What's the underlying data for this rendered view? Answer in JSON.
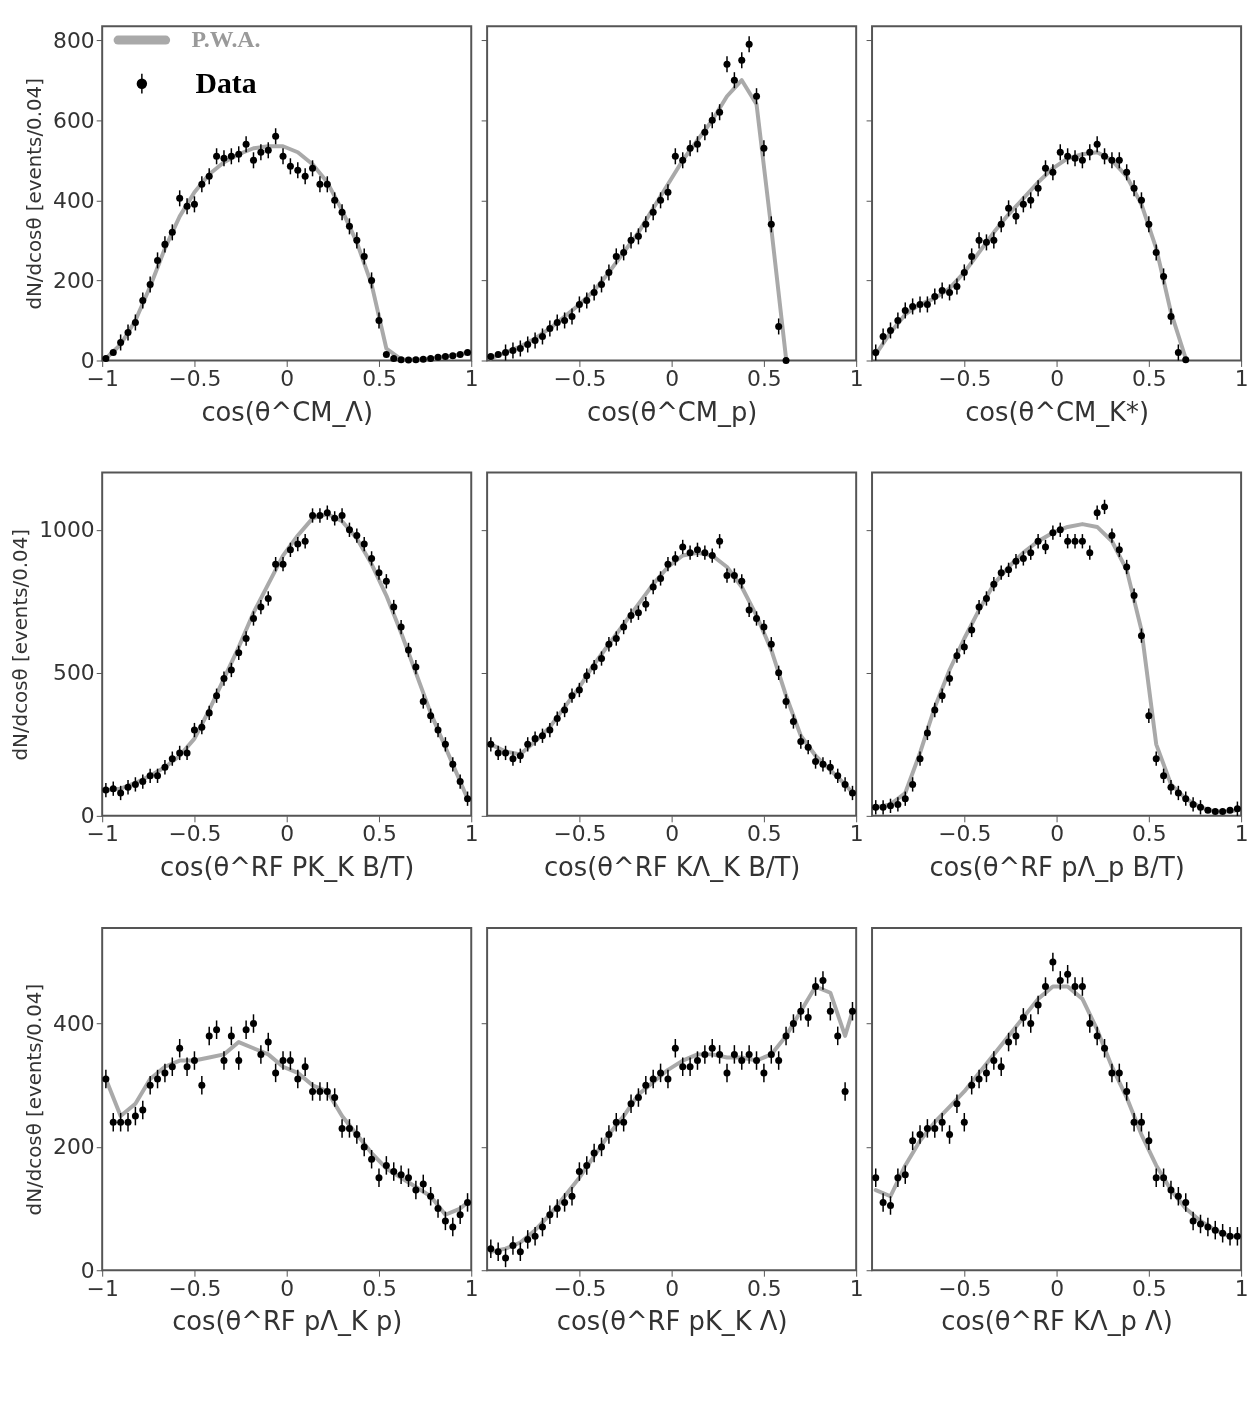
{
  "chart_data": [
    {
      "type": "scatter",
      "xlabel": "cos(θ^CM_Λ)",
      "ylabel": "dN/dcosθ [events/0.04]",
      "xlim": [
        -1,
        1
      ],
      "ylim": [
        0,
        835
      ],
      "xticks": [
        -1,
        -0.5,
        0,
        0.5,
        1
      ],
      "yticks": [
        0,
        200,
        400,
        600,
        800
      ],
      "legend": "top left",
      "x": [
        -0.98,
        -0.94,
        -0.9,
        -0.86,
        -0.82,
        -0.78,
        -0.74,
        -0.7,
        -0.66,
        -0.62,
        -0.58,
        -0.54,
        -0.5,
        -0.46,
        -0.42,
        -0.38,
        -0.34,
        -0.3,
        -0.26,
        -0.22,
        -0.18,
        -0.14,
        -0.1,
        -0.06,
        -0.02,
        0.02,
        0.06,
        0.1,
        0.14,
        0.18,
        0.22,
        0.26,
        0.3,
        0.34,
        0.38,
        0.42,
        0.46,
        0.5,
        0.54,
        0.58,
        0.62,
        0.66,
        0.7,
        0.74,
        0.78,
        0.82,
        0.86,
        0.9,
        0.94,
        0.98
      ],
      "series": [
        {
          "name": "P.W.A.",
          "type": "line",
          "marker": "none",
          "color": "#9a9a9a",
          "x": [
            -0.98,
            -0.9,
            -0.82,
            -0.74,
            -0.66,
            -0.58,
            -0.5,
            -0.42,
            -0.34,
            -0.26,
            -0.18,
            -0.1,
            -0.02,
            0.06,
            0.14,
            0.22,
            0.3,
            0.38,
            0.46,
            0.54,
            0.62,
            0.7,
            0.78,
            0.86,
            0.94,
            0.98
          ],
          "values": [
            5,
            40,
            100,
            185,
            280,
            360,
            420,
            465,
            495,
            515,
            530,
            535,
            535,
            520,
            490,
            445,
            375,
            295,
            190,
            30,
            3,
            2,
            5,
            10,
            15,
            20
          ]
        },
        {
          "name": "Data",
          "type": "scatter",
          "marker": "circle",
          "color": "#000000",
          "values": [
            5,
            20,
            45,
            70,
            95,
            150,
            190,
            250,
            290,
            320,
            405,
            385,
            390,
            440,
            460,
            510,
            505,
            510,
            515,
            540,
            500,
            520,
            525,
            560,
            510,
            485,
            475,
            460,
            480,
            440,
            440,
            400,
            370,
            335,
            300,
            260,
            200,
            100,
            15,
            5,
            2,
            1,
            2,
            3,
            5,
            8,
            10,
            12,
            15,
            20
          ],
          "errors": [
            null,
            null,
            20,
            20,
            20,
            20,
            20,
            20,
            20,
            20,
            20,
            20,
            20,
            20,
            20,
            20,
            20,
            20,
            20,
            20,
            20,
            20,
            20,
            20,
            20,
            20,
            20,
            20,
            20,
            20,
            20,
            20,
            20,
            20,
            20,
            20,
            20,
            20,
            null,
            null,
            null,
            null,
            null,
            null,
            null,
            null,
            null,
            null,
            null,
            null
          ]
        }
      ]
    },
    {
      "type": "scatter",
      "xlabel": "cos(θ^CM_p)",
      "xlim": [
        -1,
        1
      ],
      "ylim": [
        0,
        835
      ],
      "xticks": [
        -0.5,
        0,
        0.5,
        1
      ],
      "yticks": [
        0,
        200,
        400,
        600,
        800
      ],
      "tick_labels": "x",
      "x": [
        -0.98,
        -0.94,
        -0.9,
        -0.86,
        -0.82,
        -0.78,
        -0.74,
        -0.7,
        -0.66,
        -0.62,
        -0.58,
        -0.54,
        -0.5,
        -0.46,
        -0.42,
        -0.38,
        -0.34,
        -0.3,
        -0.26,
        -0.22,
        -0.18,
        -0.14,
        -0.1,
        -0.06,
        -0.02,
        0.02,
        0.06,
        0.1,
        0.14,
        0.18,
        0.22,
        0.26,
        0.3,
        0.34,
        0.38,
        0.42,
        0.46,
        0.5,
        0.54,
        0.58,
        0.62
      ],
      "series": [
        {
          "type": "line",
          "marker": "none",
          "color": "#9a9a9a",
          "x": [
            -0.98,
            -0.9,
            -0.82,
            -0.74,
            -0.66,
            -0.58,
            -0.5,
            -0.42,
            -0.34,
            -0.26,
            -0.18,
            -0.1,
            -0.02,
            0.06,
            0.14,
            0.22,
            0.3,
            0.38,
            0.46,
            0.54,
            0.62
          ],
          "values": [
            5,
            20,
            35,
            55,
            80,
            110,
            140,
            175,
            220,
            270,
            320,
            380,
            440,
            500,
            550,
            600,
            660,
            700,
            640,
            330,
            5
          ]
        },
        {
          "type": "scatter",
          "marker": "circle",
          "color": "#000000",
          "values": [
            10,
            15,
            20,
            25,
            30,
            40,
            50,
            60,
            80,
            95,
            100,
            110,
            140,
            150,
            170,
            190,
            220,
            260,
            270,
            300,
            310,
            340,
            370,
            400,
            420,
            510,
            500,
            530,
            540,
            570,
            600,
            620,
            740,
            700,
            750,
            790,
            660,
            530,
            340,
            85,
            0
          ],
          "errors": [
            null,
            null,
            20,
            20,
            20,
            20,
            20,
            20,
            20,
            20,
            20,
            20,
            20,
            20,
            20,
            20,
            20,
            20,
            20,
            20,
            20,
            20,
            20,
            20,
            20,
            20,
            20,
            20,
            20,
            20,
            20,
            20,
            20,
            20,
            20,
            20,
            20,
            20,
            20,
            20,
            null
          ]
        }
      ]
    },
    {
      "type": "scatter",
      "xlabel": "cos(θ^CM_K*)",
      "xlim": [
        -1,
        1
      ],
      "ylim": [
        0,
        835
      ],
      "xticks": [
        -0.5,
        0,
        0.5,
        1
      ],
      "yticks": [
        0,
        200,
        400,
        600,
        800
      ],
      "tick_labels": "x",
      "x": [
        -0.98,
        -0.94,
        -0.9,
        -0.86,
        -0.82,
        -0.78,
        -0.74,
        -0.7,
        -0.66,
        -0.62,
        -0.58,
        -0.54,
        -0.5,
        -0.46,
        -0.42,
        -0.38,
        -0.34,
        -0.3,
        -0.26,
        -0.22,
        -0.18,
        -0.14,
        -0.1,
        -0.06,
        -0.02,
        0.02,
        0.06,
        0.1,
        0.14,
        0.18,
        0.22,
        0.26,
        0.3,
        0.34,
        0.38,
        0.42,
        0.46,
        0.5,
        0.54,
        0.58,
        0.62,
        0.66,
        0.7
      ],
      "series": [
        {
          "type": "line",
          "marker": "none",
          "color": "#9a9a9a",
          "x": [
            -0.98,
            -0.9,
            -0.82,
            -0.74,
            -0.66,
            -0.58,
            -0.5,
            -0.42,
            -0.34,
            -0.26,
            -0.18,
            -0.1,
            -0.02,
            0.06,
            0.14,
            0.22,
            0.3,
            0.38,
            0.46,
            0.54,
            0.62,
            0.7
          ],
          "values": [
            15,
            70,
            115,
            140,
            155,
            180,
            220,
            270,
            320,
            365,
            405,
            445,
            480,
            505,
            515,
            520,
            500,
            460,
            390,
            280,
            120,
            5
          ]
        },
        {
          "type": "scatter",
          "marker": "circle",
          "color": "#000000",
          "values": [
            20,
            60,
            75,
            100,
            125,
            135,
            140,
            140,
            160,
            175,
            170,
            185,
            220,
            260,
            300,
            295,
            300,
            340,
            380,
            360,
            390,
            400,
            430,
            480,
            470,
            520,
            510,
            505,
            500,
            520,
            540,
            510,
            500,
            500,
            470,
            430,
            400,
            340,
            270,
            210,
            110,
            20,
            2
          ],
          "errors": [
            20,
            20,
            20,
            20,
            20,
            20,
            20,
            20,
            20,
            20,
            20,
            20,
            20,
            20,
            20,
            20,
            20,
            20,
            20,
            20,
            20,
            20,
            20,
            20,
            20,
            20,
            20,
            20,
            20,
            20,
            20,
            20,
            20,
            20,
            20,
            20,
            20,
            20,
            20,
            20,
            20,
            20,
            null
          ]
        }
      ]
    },
    {
      "type": "scatter",
      "xlabel": "cos(θ^RF PK_K B/T)",
      "ylabel": "dN/dcosθ [events/0.04]",
      "xlim": [
        -1,
        1
      ],
      "ylim": [
        0,
        1200
      ],
      "xticks": [
        -1,
        -0.5,
        0,
        0.5,
        1
      ],
      "yticks": [
        0,
        500,
        1000
      ],
      "x": [
        -0.98,
        -0.94,
        -0.9,
        -0.86,
        -0.82,
        -0.78,
        -0.74,
        -0.7,
        -0.66,
        -0.62,
        -0.58,
        -0.54,
        -0.5,
        -0.46,
        -0.42,
        -0.38,
        -0.34,
        -0.3,
        -0.26,
        -0.22,
        -0.18,
        -0.14,
        -0.1,
        -0.06,
        -0.02,
        0.02,
        0.06,
        0.1,
        0.14,
        0.18,
        0.22,
        0.26,
        0.3,
        0.34,
        0.38,
        0.42,
        0.46,
        0.5,
        0.54,
        0.58,
        0.62,
        0.66,
        0.7,
        0.74,
        0.78,
        0.82,
        0.86,
        0.9,
        0.94,
        0.98
      ],
      "series": [
        {
          "type": "line",
          "marker": "none",
          "color": "#9a9a9a",
          "x": [
            -0.98,
            -0.9,
            -0.82,
            -0.74,
            -0.66,
            -0.58,
            -0.5,
            -0.42,
            -0.34,
            -0.26,
            -0.18,
            -0.1,
            -0.02,
            0.06,
            0.14,
            0.22,
            0.3,
            0.38,
            0.46,
            0.54,
            0.62,
            0.7,
            0.78,
            0.86,
            0.94,
            0.98
          ],
          "values": [
            90,
            95,
            115,
            140,
            170,
            210,
            270,
            370,
            480,
            590,
            710,
            810,
            910,
            980,
            1040,
            1055,
            1030,
            970,
            880,
            770,
            640,
            500,
            360,
            240,
            120,
            60
          ]
        },
        {
          "type": "scatter",
          "marker": "circle",
          "color": "#000000",
          "values": [
            90,
            95,
            80,
            100,
            110,
            120,
            140,
            140,
            170,
            200,
            220,
            220,
            300,
            310,
            360,
            420,
            480,
            510,
            570,
            620,
            690,
            730,
            760,
            880,
            880,
            930,
            950,
            960,
            1050,
            1050,
            1060,
            1040,
            1050,
            1000,
            980,
            950,
            900,
            850,
            820,
            730,
            660,
            580,
            520,
            400,
            350,
            300,
            250,
            180,
            120,
            60
          ],
          "errors": [
            25,
            25,
            25,
            25,
            25,
            25,
            25,
            25,
            25,
            25,
            25,
            25,
            25,
            25,
            25,
            25,
            25,
            25,
            25,
            25,
            25,
            25,
            25,
            25,
            25,
            25,
            25,
            25,
            25,
            25,
            25,
            25,
            25,
            25,
            25,
            25,
            25,
            25,
            25,
            25,
            25,
            25,
            25,
            25,
            25,
            25,
            25,
            25,
            25,
            25
          ]
        }
      ]
    },
    {
      "type": "scatter",
      "xlabel": "cos(θ^RF KΛ_K B/T)",
      "xlim": [
        -1,
        1
      ],
      "ylim": [
        0,
        1200
      ],
      "xticks": [
        -0.5,
        0,
        0.5,
        1
      ],
      "yticks": [
        0,
        500,
        1000
      ],
      "tick_labels": "x",
      "x": [
        -0.98,
        -0.94,
        -0.9,
        -0.86,
        -0.82,
        -0.78,
        -0.74,
        -0.7,
        -0.66,
        -0.62,
        -0.58,
        -0.54,
        -0.5,
        -0.46,
        -0.42,
        -0.38,
        -0.34,
        -0.3,
        -0.26,
        -0.22,
        -0.18,
        -0.14,
        -0.1,
        -0.06,
        -0.02,
        0.02,
        0.06,
        0.1,
        0.14,
        0.18,
        0.22,
        0.26,
        0.3,
        0.34,
        0.38,
        0.42,
        0.46,
        0.5,
        0.54,
        0.58,
        0.62,
        0.66,
        0.7,
        0.74,
        0.78,
        0.82,
        0.86,
        0.9,
        0.94,
        0.98
      ],
      "series": [
        {
          "type": "line",
          "marker": "none",
          "color": "#9a9a9a",
          "x": [
            -0.98,
            -0.9,
            -0.82,
            -0.74,
            -0.66,
            -0.58,
            -0.5,
            -0.42,
            -0.34,
            -0.26,
            -0.18,
            -0.1,
            -0.02,
            0.06,
            0.14,
            0.22,
            0.3,
            0.38,
            0.46,
            0.54,
            0.62,
            0.7,
            0.78,
            0.86,
            0.94,
            0.98
          ],
          "values": [
            250,
            225,
            215,
            260,
            310,
            380,
            450,
            530,
            600,
            670,
            740,
            810,
            870,
            910,
            920,
            910,
            870,
            800,
            700,
            580,
            420,
            280,
            210,
            160,
            110,
            80
          ]
        },
        {
          "type": "scatter",
          "marker": "circle",
          "color": "#000000",
          "values": [
            250,
            220,
            220,
            200,
            210,
            250,
            270,
            280,
            300,
            340,
            370,
            420,
            440,
            490,
            520,
            550,
            600,
            620,
            660,
            700,
            710,
            740,
            800,
            830,
            880,
            900,
            940,
            920,
            930,
            920,
            910,
            960,
            840,
            840,
            820,
            720,
            690,
            660,
            600,
            500,
            400,
            330,
            260,
            240,
            190,
            180,
            170,
            140,
            110,
            80
          ],
          "errors": [
            25,
            25,
            25,
            25,
            25,
            25,
            25,
            25,
            25,
            25,
            25,
            25,
            25,
            25,
            25,
            25,
            25,
            25,
            25,
            25,
            25,
            25,
            25,
            25,
            25,
            25,
            25,
            25,
            25,
            25,
            25,
            25,
            25,
            25,
            25,
            25,
            25,
            25,
            25,
            25,
            25,
            25,
            25,
            25,
            25,
            25,
            25,
            25,
            25,
            25
          ]
        }
      ]
    },
    {
      "type": "scatter",
      "xlabel": "cos(θ^RF pΛ_p B/T)",
      "xlim": [
        -1,
        1
      ],
      "ylim": [
        0,
        1200
      ],
      "xticks": [
        -0.5,
        0,
        0.5,
        1
      ],
      "yticks": [
        0,
        500,
        1000
      ],
      "tick_labels": "x",
      "x": [
        -0.98,
        -0.94,
        -0.9,
        -0.86,
        -0.82,
        -0.78,
        -0.74,
        -0.7,
        -0.66,
        -0.62,
        -0.58,
        -0.54,
        -0.5,
        -0.46,
        -0.42,
        -0.38,
        -0.34,
        -0.3,
        -0.26,
        -0.22,
        -0.18,
        -0.14,
        -0.1,
        -0.06,
        -0.02,
        0.02,
        0.06,
        0.1,
        0.14,
        0.18,
        0.22,
        0.26,
        0.3,
        0.34,
        0.38,
        0.42,
        0.46,
        0.5,
        0.54,
        0.58,
        0.62,
        0.66,
        0.7,
        0.74,
        0.78,
        0.82,
        0.86,
        0.9,
        0.94,
        0.98
      ],
      "series": [
        {
          "type": "line",
          "marker": "none",
          "color": "#9a9a9a",
          "x": [
            -0.98,
            -0.9,
            -0.82,
            -0.74,
            -0.66,
            -0.58,
            -0.5,
            -0.42,
            -0.34,
            -0.26,
            -0.18,
            -0.1,
            -0.02,
            0.06,
            0.14,
            0.22,
            0.3,
            0.38,
            0.46,
            0.54,
            0.62,
            0.7,
            0.78,
            0.86,
            0.94,
            0.98
          ],
          "values": [
            30,
            40,
            80,
            220,
            380,
            510,
            620,
            720,
            810,
            870,
            920,
            960,
            990,
            1010,
            1020,
            1010,
            960,
            860,
            650,
            250,
            110,
            60,
            30,
            15,
            15,
            20
          ]
        },
        {
          "type": "scatter",
          "marker": "circle",
          "color": "#000000",
          "values": [
            30,
            30,
            35,
            40,
            60,
            110,
            200,
            290,
            370,
            420,
            480,
            560,
            590,
            650,
            730,
            760,
            810,
            850,
            860,
            890,
            900,
            920,
            960,
            940,
            990,
            1000,
            960,
            960,
            960,
            920,
            1060,
            1080,
            980,
            930,
            870,
            770,
            630,
            350,
            200,
            140,
            100,
            80,
            60,
            40,
            30,
            20,
            15,
            15,
            20,
            25
          ],
          "errors": [
            25,
            25,
            25,
            25,
            25,
            25,
            25,
            25,
            25,
            25,
            25,
            25,
            25,
            25,
            25,
            25,
            25,
            25,
            25,
            25,
            25,
            25,
            25,
            25,
            25,
            25,
            25,
            25,
            25,
            25,
            25,
            25,
            25,
            25,
            25,
            25,
            25,
            25,
            25,
            25,
            25,
            25,
            25,
            25,
            25,
            null,
            null,
            null,
            null,
            25
          ]
        }
      ]
    },
    {
      "type": "scatter",
      "xlabel": "cos(θ^RF pΛ_K p)",
      "ylabel": "dN/dcosθ [events/0.04]",
      "xlim": [
        -1,
        1
      ],
      "ylim": [
        0,
        555
      ],
      "xticks": [
        -1,
        -0.5,
        0,
        0.5,
        1
      ],
      "yticks": [
        0,
        200,
        400
      ],
      "x": [
        -0.98,
        -0.94,
        -0.9,
        -0.86,
        -0.82,
        -0.78,
        -0.74,
        -0.7,
        -0.66,
        -0.62,
        -0.58,
        -0.54,
        -0.5,
        -0.46,
        -0.42,
        -0.38,
        -0.34,
        -0.3,
        -0.26,
        -0.22,
        -0.18,
        -0.14,
        -0.1,
        -0.06,
        -0.02,
        0.02,
        0.06,
        0.1,
        0.14,
        0.18,
        0.22,
        0.26,
        0.3,
        0.34,
        0.38,
        0.42,
        0.46,
        0.5,
        0.54,
        0.58,
        0.62,
        0.66,
        0.7,
        0.74,
        0.78,
        0.82,
        0.86,
        0.9,
        0.94,
        0.98
      ],
      "series": [
        {
          "type": "line",
          "marker": "none",
          "color": "#9a9a9a",
          "x": [
            -0.98,
            -0.9,
            -0.82,
            -0.74,
            -0.66,
            -0.58,
            -0.5,
            -0.42,
            -0.34,
            -0.26,
            -0.18,
            -0.1,
            -0.02,
            0.06,
            0.14,
            0.22,
            0.3,
            0.38,
            0.46,
            0.54,
            0.62,
            0.7,
            0.78,
            0.86,
            0.94,
            0.98
          ],
          "values": [
            310,
            250,
            270,
            310,
            330,
            340,
            340,
            345,
            350,
            370,
            360,
            350,
            330,
            320,
            300,
            290,
            250,
            220,
            190,
            165,
            150,
            135,
            120,
            90,
            100,
            110
          ]
        },
        {
          "type": "scatter",
          "marker": "circle",
          "color": "#000000",
          "values": [
            310,
            240,
            240,
            240,
            250,
            260,
            300,
            310,
            320,
            330,
            360,
            330,
            340,
            300,
            380,
            390,
            340,
            380,
            340,
            390,
            400,
            350,
            370,
            320,
            340,
            340,
            310,
            330,
            290,
            290,
            290,
            280,
            230,
            230,
            220,
            200,
            180,
            150,
            170,
            160,
            155,
            150,
            130,
            140,
            120,
            100,
            80,
            70,
            90,
            110
          ],
          "errors": [
            15,
            15,
            15,
            15,
            15,
            15,
            15,
            15,
            15,
            15,
            15,
            15,
            15,
            15,
            15,
            15,
            15,
            15,
            15,
            15,
            15,
            15,
            15,
            15,
            15,
            15,
            15,
            15,
            15,
            15,
            15,
            15,
            15,
            15,
            15,
            15,
            15,
            15,
            15,
            15,
            15,
            15,
            15,
            15,
            15,
            15,
            15,
            15,
            15,
            15
          ]
        }
      ]
    },
    {
      "type": "scatter",
      "xlabel": "cos(θ^RF pK_K Λ)",
      "xlim": [
        -1,
        1
      ],
      "ylim": [
        0,
        555
      ],
      "xticks": [
        -0.5,
        0,
        0.5,
        1
      ],
      "yticks": [
        0,
        200,
        400
      ],
      "tick_labels": "x",
      "x": [
        -0.98,
        -0.94,
        -0.9,
        -0.86,
        -0.82,
        -0.78,
        -0.74,
        -0.7,
        -0.66,
        -0.62,
        -0.58,
        -0.54,
        -0.5,
        -0.46,
        -0.42,
        -0.38,
        -0.34,
        -0.3,
        -0.26,
        -0.22,
        -0.18,
        -0.14,
        -0.1,
        -0.06,
        -0.02,
        0.02,
        0.06,
        0.1,
        0.14,
        0.18,
        0.22,
        0.26,
        0.3,
        0.34,
        0.38,
        0.42,
        0.46,
        0.5,
        0.54,
        0.58,
        0.62,
        0.66,
        0.7,
        0.74,
        0.78,
        0.82,
        0.86,
        0.9,
        0.94,
        0.98
      ],
      "series": [
        {
          "type": "line",
          "marker": "none",
          "color": "#9a9a9a",
          "x": [
            -0.98,
            -0.9,
            -0.82,
            -0.74,
            -0.66,
            -0.58,
            -0.5,
            -0.42,
            -0.34,
            -0.26,
            -0.18,
            -0.1,
            -0.02,
            0.06,
            0.14,
            0.22,
            0.3,
            0.38,
            0.46,
            0.54,
            0.62,
            0.7,
            0.78,
            0.86,
            0.94,
            0.98
          ],
          "values": [
            30,
            35,
            45,
            65,
            90,
            120,
            150,
            185,
            220,
            250,
            285,
            305,
            325,
            340,
            350,
            350,
            345,
            345,
            340,
            350,
            380,
            420,
            460,
            450,
            380,
            420
          ]
        },
        {
          "type": "scatter",
          "marker": "circle",
          "color": "#000000",
          "values": [
            35,
            30,
            20,
            40,
            30,
            50,
            55,
            70,
            90,
            100,
            110,
            120,
            160,
            170,
            190,
            200,
            220,
            240,
            240,
            270,
            280,
            300,
            310,
            320,
            310,
            360,
            330,
            330,
            340,
            350,
            360,
            350,
            320,
            350,
            340,
            350,
            340,
            320,
            350,
            340,
            380,
            400,
            420,
            410,
            460,
            470,
            420,
            380,
            290,
            420
          ],
          "errors": [
            15,
            15,
            15,
            15,
            15,
            15,
            15,
            15,
            15,
            15,
            15,
            15,
            15,
            15,
            15,
            15,
            15,
            15,
            15,
            15,
            15,
            15,
            15,
            15,
            15,
            15,
            15,
            15,
            15,
            15,
            15,
            15,
            15,
            15,
            15,
            15,
            15,
            15,
            15,
            15,
            15,
            15,
            15,
            15,
            15,
            15,
            15,
            15,
            15,
            15
          ]
        }
      ]
    },
    {
      "type": "scatter",
      "xlabel": "cos(θ^RF KΛ_p Λ)",
      "xlim": [
        -1,
        1
      ],
      "ylim": [
        0,
        555
      ],
      "xticks": [
        -0.5,
        0,
        0.5,
        1
      ],
      "yticks": [
        0,
        200,
        400
      ],
      "tick_labels": "x",
      "x": [
        -0.98,
        -0.94,
        -0.9,
        -0.86,
        -0.82,
        -0.78,
        -0.74,
        -0.7,
        -0.66,
        -0.62,
        -0.58,
        -0.54,
        -0.5,
        -0.46,
        -0.42,
        -0.38,
        -0.34,
        -0.3,
        -0.26,
        -0.22,
        -0.18,
        -0.14,
        -0.1,
        -0.06,
        -0.02,
        0.02,
        0.06,
        0.1,
        0.14,
        0.18,
        0.22,
        0.26,
        0.3,
        0.34,
        0.38,
        0.42,
        0.46,
        0.5,
        0.54,
        0.58,
        0.62,
        0.66,
        0.7,
        0.74,
        0.78,
        0.82,
        0.86,
        0.9,
        0.94,
        0.98
      ],
      "series": [
        {
          "type": "line",
          "marker": "none",
          "color": "#9a9a9a",
          "x": [
            -0.98,
            -0.9,
            -0.82,
            -0.74,
            -0.66,
            -0.58,
            -0.5,
            -0.42,
            -0.34,
            -0.26,
            -0.18,
            -0.1,
            -0.02,
            0.06,
            0.14,
            0.22,
            0.3,
            0.38,
            0.46,
            0.54,
            0.62,
            0.7,
            0.78,
            0.86,
            0.94,
            0.98
          ],
          "values": [
            130,
            120,
            170,
            210,
            240,
            265,
            290,
            320,
            350,
            380,
            410,
            440,
            460,
            460,
            440,
            390,
            330,
            280,
            220,
            170,
            130,
            100,
            80,
            65,
            55,
            55
          ]
        },
        {
          "type": "scatter",
          "marker": "circle",
          "color": "#000000",
          "values": [
            150,
            110,
            105,
            150,
            155,
            210,
            220,
            230,
            230,
            240,
            220,
            270,
            240,
            300,
            310,
            320,
            340,
            330,
            370,
            380,
            410,
            400,
            430,
            460,
            500,
            470,
            480,
            460,
            460,
            400,
            380,
            360,
            320,
            320,
            290,
            240,
            240,
            210,
            150,
            150,
            130,
            120,
            110,
            80,
            75,
            70,
            65,
            60,
            55,
            55
          ],
          "errors": [
            15,
            15,
            15,
            15,
            15,
            15,
            15,
            15,
            15,
            15,
            15,
            15,
            15,
            15,
            15,
            15,
            15,
            15,
            15,
            15,
            15,
            15,
            15,
            15,
            15,
            15,
            15,
            15,
            15,
            15,
            15,
            15,
            15,
            15,
            15,
            15,
            15,
            15,
            15,
            15,
            15,
            15,
            15,
            15,
            15,
            15,
            15,
            15,
            15,
            15
          ]
        }
      ]
    }
  ]
}
